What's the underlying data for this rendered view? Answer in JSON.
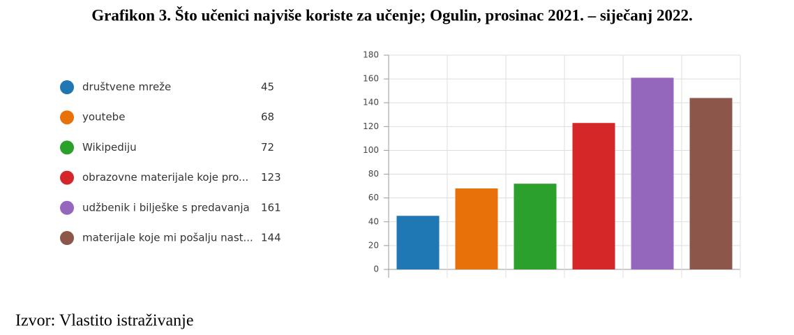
{
  "chart_data": {
    "type": "bar",
    "title": "Grafikon 3. Što učenici najviše koriste za učenje; Ogulin, prosinac 2021. – siječanj 2022.",
    "source": "Izvor: Vlastito istraživanje",
    "categories": [
      "društvene mreže",
      "youtebe",
      "Wikipediju",
      "obrazovne materijale koje pro...",
      "udžbenik i bilješke s predavanja",
      "materijale koje mi pošalju nast..."
    ],
    "values": [
      45,
      68,
      72,
      123,
      161,
      144
    ],
    "colors": [
      "#1f77b4",
      "#e8710a",
      "#2ca02c",
      "#d62728",
      "#9467bd",
      "#8c564b"
    ],
    "ylim": [
      0,
      180
    ],
    "yticks": [
      0,
      20,
      40,
      60,
      80,
      100,
      120,
      140,
      160,
      180
    ],
    "grid": true
  }
}
